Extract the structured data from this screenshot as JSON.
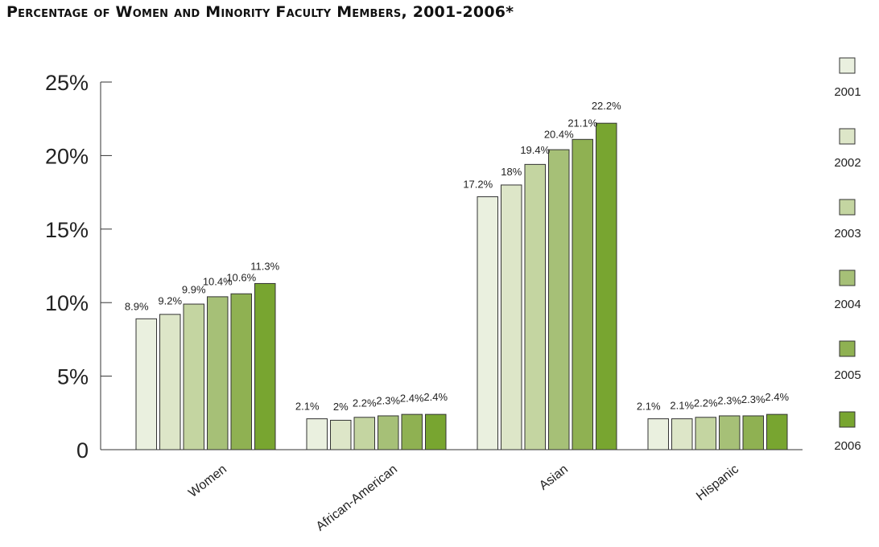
{
  "chart_data": {
    "type": "bar",
    "title": "Percentage of Women and Minority Faculty Members, 2001-2006*",
    "categories": [
      "Women",
      "African-American",
      "Asian",
      "Hispanic"
    ],
    "series": [
      {
        "name": "2001",
        "color": "#eaf0df",
        "values": [
          8.9,
          2.1,
          17.2,
          2.1
        ],
        "labels": [
          "8.9%",
          "2.1%",
          "17.2%",
          "2.1%"
        ]
      },
      {
        "name": "2002",
        "color": "#dde6c8",
        "values": [
          9.2,
          2.0,
          18.0,
          2.1
        ],
        "labels": [
          "9.2%",
          "2%",
          "18%",
          "2.1%"
        ]
      },
      {
        "name": "2003",
        "color": "#c4d5a1",
        "values": [
          9.9,
          2.2,
          19.4,
          2.2
        ],
        "labels": [
          "9.9%",
          "2.2%",
          "19.4%",
          "2.2%"
        ]
      },
      {
        "name": "2004",
        "color": "#a6c077",
        "values": [
          10.4,
          2.3,
          20.4,
          2.3
        ],
        "labels": [
          "10.4%",
          "2.3%",
          "20.4%",
          "2.3%"
        ]
      },
      {
        "name": "2005",
        "color": "#8fb152",
        "values": [
          10.6,
          2.4,
          21.1,
          2.3
        ],
        "labels": [
          "10.6%",
          "2.4%",
          "21.1%",
          "2.3%"
        ]
      },
      {
        "name": "2006",
        "color": "#78a530",
        "values": [
          11.3,
          2.4,
          22.2,
          2.4
        ],
        "labels": [
          "11.3%",
          "2.4%",
          "22.2%",
          "2.4%"
        ]
      }
    ],
    "yticks": [
      0,
      5,
      10,
      15,
      20,
      25
    ],
    "ytick_labels": [
      "0",
      "5%",
      "10%",
      "15%",
      "20%",
      "25%"
    ],
    "ylim": [
      0,
      25
    ],
    "grid": false,
    "legend_position": "right",
    "xlabel": "",
    "ylabel": ""
  }
}
